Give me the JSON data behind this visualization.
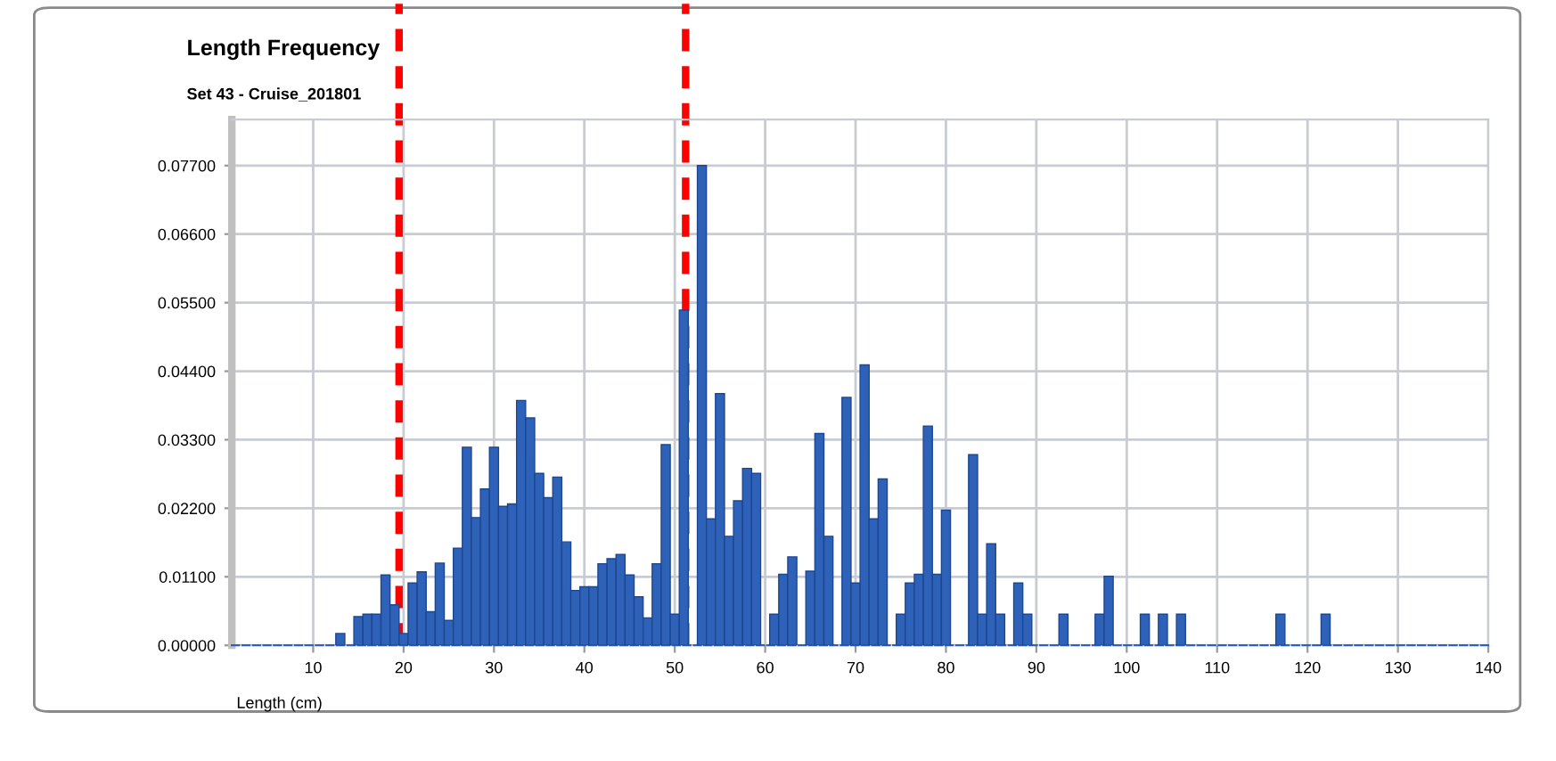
{
  "chart_data": {
    "type": "histogram",
    "title": "Length Frequency",
    "subtitle": "Set 43 - Cruise_201801",
    "xlabel": "Length (cm)",
    "bins": [
      12.5,
      13.5,
      14.5,
      15.5,
      16.5,
      17.5,
      18.5,
      19.5,
      20.5,
      21.5,
      22.5,
      23.5,
      24.5,
      25.5,
      26.5,
      27.5,
      28.5,
      29.5,
      30.5,
      31.5,
      32.5,
      33.5,
      34.5,
      35.5,
      36.5,
      37.5,
      38.5,
      39.5,
      40.5,
      41.5,
      42.5,
      43.5,
      44.5,
      45.5,
      46.5,
      47.5,
      48.5,
      49.5,
      50.5,
      51.5,
      52.5,
      53.5,
      54.5,
      55.5,
      56.5,
      57.5,
      58.5,
      59.5,
      60.5,
      61.5,
      62.5,
      63.5,
      64.5,
      65.5,
      66.5,
      67.5,
      68.5,
      69.5,
      70.5,
      71.5,
      72.5,
      73.5,
      74.5,
      75.5,
      76.5,
      77.5,
      78.5,
      79.5,
      80.5,
      81.5,
      82.5,
      83.5,
      84.5,
      85.5,
      86.5,
      87.5,
      88.5,
      89.5,
      90.5,
      91.5,
      92.5,
      93.5,
      94.5,
      95.5,
      96.5,
      97.5,
      98.5,
      99.5,
      100.5,
      101.5,
      102.5,
      103.5,
      104.5,
      105.5,
      106.5,
      107.5,
      108.5,
      109.5,
      110.5,
      111.5,
      112.5,
      113.5,
      114.5,
      115.5,
      116.5,
      117.5,
      118.5,
      119.5,
      120.5,
      121.5,
      122.5
    ],
    "values": [
      0.0019,
      0,
      0.0046,
      0.005,
      0.005,
      0.0113,
      0.0065,
      0.0019,
      0.01,
      0.0118,
      0.0054,
      0.0132,
      0.004,
      0.0156,
      0.0318,
      0.0205,
      0.0251,
      0.0318,
      0.0223,
      0.0227,
      0.0393,
      0.0365,
      0.0276,
      0.0237,
      0.027,
      0.0166,
      0.0088,
      0.0094,
      0.0094,
      0.0131,
      0.0139,
      0.0146,
      0.0113,
      0.0078,
      0.0044,
      0.0131,
      0.0322,
      0.005,
      0.0538,
      0,
      0.077,
      0.0203,
      0.0404,
      0.0175,
      0.0232,
      0.0284,
      0.0276,
      0,
      0.005,
      0.0114,
      0.0142,
      0,
      0.0119,
      0.034,
      0.0175,
      0,
      0.0398,
      0.01,
      0.045,
      0.0203,
      0.0267,
      0,
      0.005,
      0.01,
      0.0114,
      0.0352,
      0.0114,
      0.0217,
      0,
      0,
      0.0306,
      0.005,
      0.0163,
      0.005,
      0,
      0.01,
      0.005,
      0,
      0,
      0,
      0.005,
      0,
      0,
      0,
      0.005,
      0.0111,
      0,
      0,
      0,
      0.005,
      0,
      0.005,
      0,
      0.005,
      0,
      0,
      0,
      0,
      0,
      0,
      0,
      0,
      0,
      0,
      0.005,
      0,
      0,
      0,
      0,
      0.005
    ],
    "color": "#2e62b8",
    "xlim": [
      1,
      140
    ],
    "xticks": [
      10,
      20,
      30,
      40,
      50,
      60,
      70,
      80,
      90,
      100,
      110,
      120,
      130,
      140
    ],
    "ylim": [
      0,
      0.0844
    ],
    "yticks": [
      {
        "value": 0,
        "label": "0.00000"
      },
      {
        "value": 0.011,
        "label": "0.01100"
      },
      {
        "value": 0.022,
        "label": "0.02200"
      },
      {
        "value": 0.033,
        "label": "0.03300"
      },
      {
        "value": 0.044,
        "label": "0.04400"
      },
      {
        "value": 0.055,
        "label": "0.05500"
      },
      {
        "value": 0.066,
        "label": "0.06600"
      },
      {
        "value": 0.077,
        "label": "0.07700"
      }
    ],
    "grid": true,
    "ref_lines": [
      {
        "axis": "x",
        "value": 19.5,
        "color": "#ff0000",
        "line_style": "dashed"
      },
      {
        "axis": "x",
        "value": 51.2,
        "color": "#ff0000",
        "line_style": "dashed"
      }
    ]
  }
}
